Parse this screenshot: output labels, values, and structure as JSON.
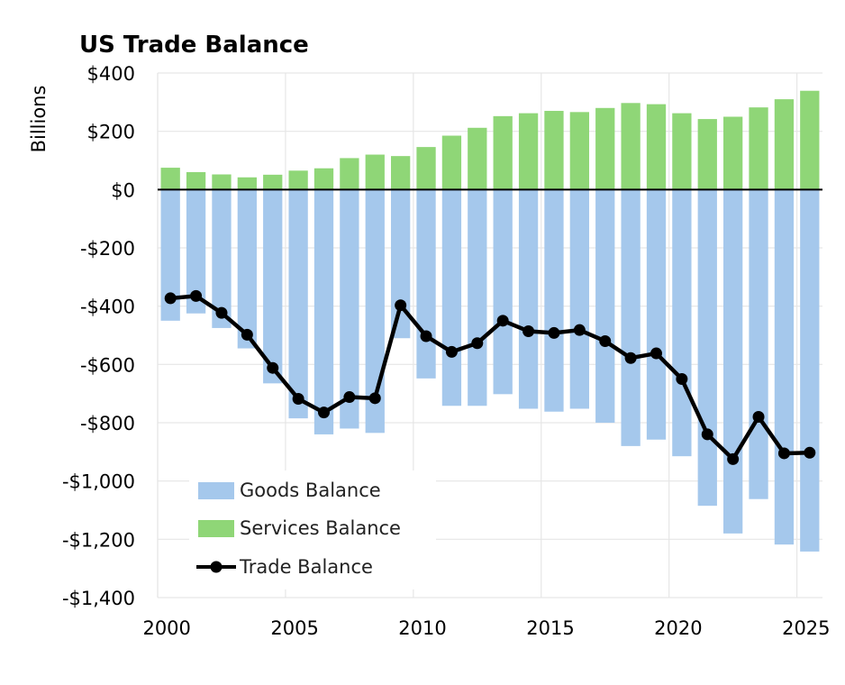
{
  "chart_data": {
    "type": "bar",
    "title": "US Trade Balance",
    "ylabel": "Billions",
    "xlabel": "",
    "ylim": [
      -1400,
      400
    ],
    "yticks": [
      400,
      200,
      0,
      -200,
      -400,
      -600,
      -800,
      -1000,
      -1200,
      -1400
    ],
    "ytick_labels": [
      "$400",
      "$200",
      "$0",
      "-$200",
      "-$400",
      "-$600",
      "-$800",
      "-$1,000",
      "-$1,200",
      "-$1,400"
    ],
    "xlim": [
      1999.5,
      2025.5
    ],
    "xticks": [
      2000,
      2005,
      2010,
      2015,
      2020,
      2025
    ],
    "xtick_labels": [
      "2000",
      "2005",
      "2010",
      "2015",
      "2020",
      "2025"
    ],
    "years": [
      2000,
      2001,
      2002,
      2003,
      2004,
      2005,
      2006,
      2007,
      2008,
      2009,
      2010,
      2011,
      2012,
      2013,
      2014,
      2015,
      2016,
      2017,
      2018,
      2019,
      2020,
      2021,
      2022,
      2023,
      2024,
      2025
    ],
    "grid": true,
    "legend_position": "bottom-left",
    "series": [
      {
        "name": "Goods Balance",
        "kind": "bar",
        "color": "#A5C8EC",
        "values": [
          -450,
          -425,
          -475,
          -545,
          -665,
          -785,
          -840,
          -820,
          -835,
          -510,
          -648,
          -742,
          -742,
          -702,
          -752,
          -762,
          -752,
          -800,
          -880,
          -858,
          -915,
          -1085,
          -1180,
          -1062,
          -1218,
          -1242
        ]
      },
      {
        "name": "Services Balance",
        "kind": "bar",
        "color": "#8FD677",
        "values": [
          75,
          60,
          52,
          42,
          51,
          65,
          73,
          108,
          120,
          115,
          146,
          185,
          212,
          252,
          262,
          270,
          266,
          280,
          297,
          293,
          262,
          242,
          250,
          282,
          310,
          339
        ]
      },
      {
        "name": "Trade Balance",
        "kind": "line",
        "color": "#000000",
        "values": [
          -373,
          -365,
          -423,
          -498,
          -612,
          -718,
          -765,
          -712,
          -716,
          -397,
          -503,
          -557,
          -527,
          -450,
          -486,
          -492,
          -482,
          -520,
          -578,
          -562,
          -650,
          -840,
          -925,
          -780,
          -905,
          -903
        ]
      }
    ]
  }
}
